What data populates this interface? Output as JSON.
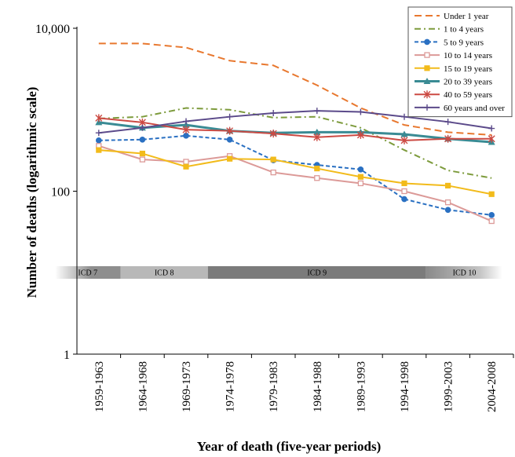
{
  "chart_data": {
    "type": "line",
    "xlabel": "Year of death (five-year periods)",
    "ylabel": "Number of deaths (logarithmic scale)",
    "yscale": "log",
    "ylim": [
      1,
      10000
    ],
    "yticks": [
      {
        "value": 1,
        "label": "1"
      },
      {
        "value": 100,
        "label": "100"
      },
      {
        "value": 10000,
        "label": "10,000"
      }
    ],
    "categories": [
      "1959-1963",
      "1964-1968",
      "1969-1973",
      "1974-1978",
      "1979-1983",
      "1984-1988",
      "1989-1993",
      "1994-1998",
      "1999-2003",
      "2004-2008"
    ],
    "legend_position": "top-right",
    "grid": false,
    "series": [
      {
        "name": "Under 1 year",
        "color": "#e8782f",
        "dash": "9,5",
        "marker": "none",
        "width": 2,
        "values": [
          6500,
          6500,
          5800,
          4000,
          3500,
          2000,
          1050,
          650,
          530,
          490
        ]
      },
      {
        "name": "1 to 4 years",
        "color": "#7d9b3c",
        "dash": "8,4,2,4",
        "marker": "none",
        "width": 2,
        "values": [
          780,
          820,
          1050,
          1000,
          800,
          820,
          600,
          320,
          180,
          145
        ]
      },
      {
        "name": "5 to 9 years",
        "color": "#2a70c2",
        "dash": "5,3",
        "marker": "circle",
        "width": 2,
        "values": [
          420,
          430,
          480,
          430,
          240,
          210,
          185,
          80,
          59,
          51
        ]
      },
      {
        "name": "10 to 14 years",
        "color": "#dc9a98",
        "dash": "",
        "marker": "square-open",
        "width": 2,
        "values": [
          360,
          245,
          230,
          270,
          170,
          145,
          125,
          100,
          73,
          43
        ]
      },
      {
        "name": "15 to 19 years",
        "color": "#f2bb1b",
        "dash": "",
        "marker": "square",
        "width": 2,
        "values": [
          320,
          290,
          200,
          250,
          245,
          190,
          150,
          125,
          117,
          92
        ]
      },
      {
        "name": "20 to 39 years",
        "color": "#3a8b94",
        "dash": "",
        "marker": "triangle",
        "width": 3,
        "values": [
          700,
          600,
          650,
          550,
          520,
          530,
          530,
          500,
          440,
          400
        ]
      },
      {
        "name": "40 to 59 years",
        "color": "#cc4a43",
        "dash": "",
        "marker": "star",
        "width": 2,
        "values": [
          790,
          700,
          570,
          550,
          510,
          460,
          490,
          420,
          440,
          440
        ]
      },
      {
        "name": "60 years and over",
        "color": "#5b4a8a",
        "dash": "",
        "marker": "plus",
        "width": 2,
        "values": [
          520,
          600,
          720,
          820,
          910,
          970,
          940,
          820,
          710,
          590
        ]
      }
    ],
    "annotations": [
      {
        "label": "ICD 7",
        "from": 0,
        "to": 1,
        "color": "#8e8e8e",
        "fade": true
      },
      {
        "label": "ICD 8",
        "from": 1,
        "to": 3,
        "color": "#b8b8b8",
        "fade": false
      },
      {
        "label": "ICD 9",
        "from": 3,
        "to": 8,
        "color": "#7b7b7b",
        "fade": false
      },
      {
        "label": "ICD 10",
        "from": 8,
        "to": 9,
        "color": "#9d9d9d",
        "fade": true
      }
    ]
  }
}
